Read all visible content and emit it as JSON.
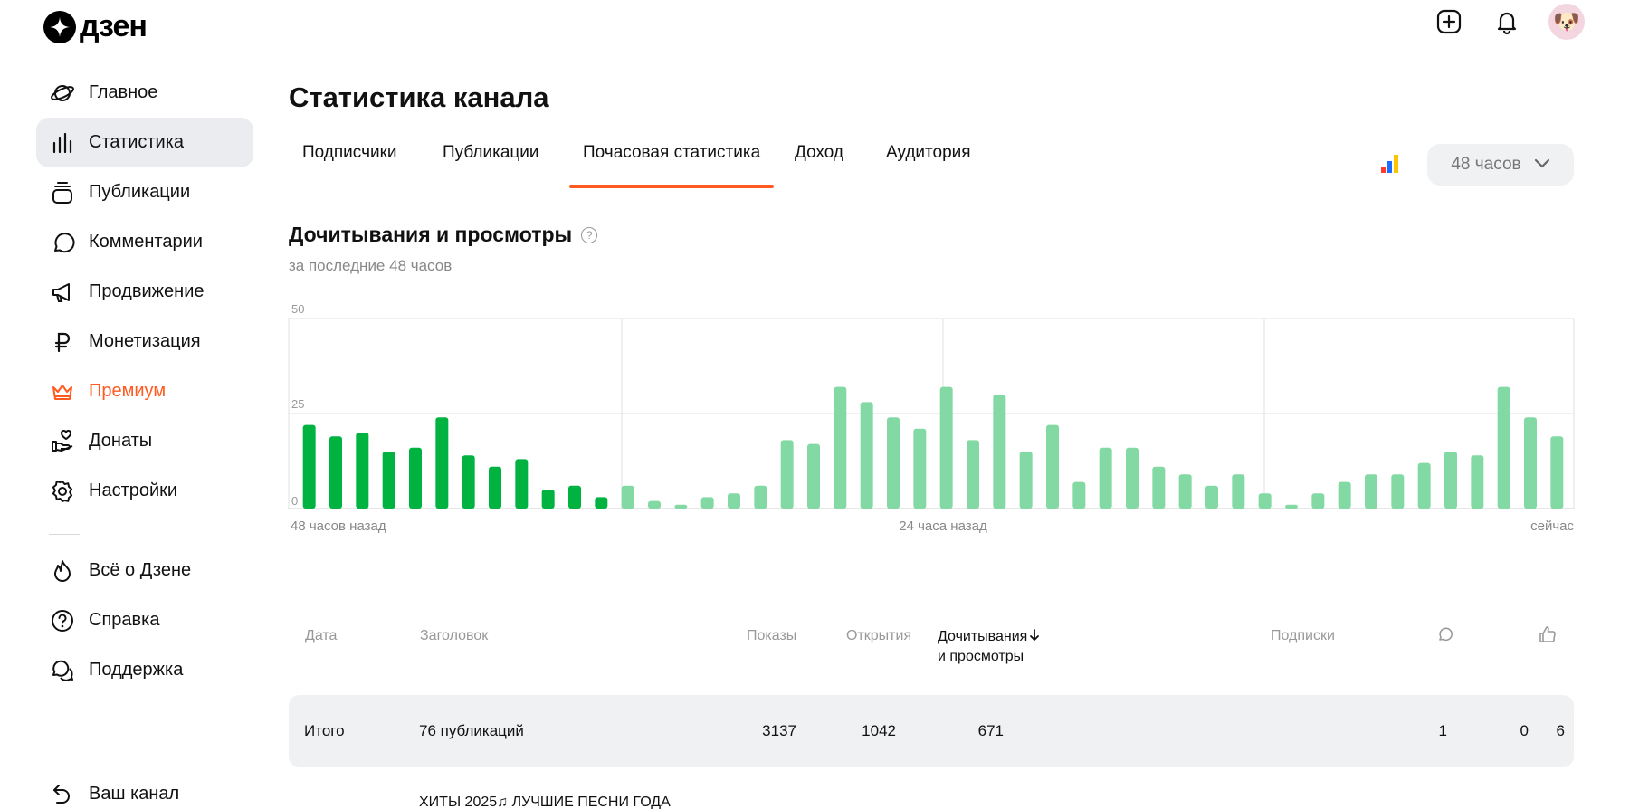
{
  "app": {
    "logo_text": "дзен",
    "logo_icon": "zen-star-icon"
  },
  "top_actions": {
    "add_icon": "plus-square-icon",
    "bell_icon": "bell-icon",
    "avatar": "🐶"
  },
  "sidebar": {
    "items": [
      {
        "label": "Главное",
        "icon": "planet-icon"
      },
      {
        "label": "Статистика",
        "icon": "bar-chart-icon",
        "active": true
      },
      {
        "label": "Публикации",
        "icon": "stack-icon"
      },
      {
        "label": "Комментарии",
        "icon": "comment-icon"
      },
      {
        "label": "Продвижение",
        "icon": "megaphone-icon"
      },
      {
        "label": "Монетизация",
        "icon": "ruble-icon"
      },
      {
        "label": "Премиум",
        "icon": "crown-icon"
      },
      {
        "label": "Донаты",
        "icon": "hand-heart-icon"
      },
      {
        "label": "Настройки",
        "icon": "gear-icon"
      }
    ],
    "secondary": [
      {
        "label": "Всё о Дзене",
        "icon": "flame-icon"
      },
      {
        "label": "Справка",
        "icon": "question-icon"
      },
      {
        "label": "Поддержка",
        "icon": "chat-bubbles-icon"
      }
    ],
    "bottom": {
      "label": "Ваш канал",
      "icon": "back-arrow-icon"
    }
  },
  "main": {
    "title": "Статистика канала",
    "tabs": [
      "Подписчики",
      "Публикации",
      "Почасовая статистика",
      "Доход",
      "Аудитория"
    ],
    "active_tab": 2,
    "period": "48 часов",
    "section_title": "Дочитывания и просмотры",
    "section_subtitle": "за последние 48 часов"
  },
  "chart_data": {
    "type": "bar",
    "title": "Дочитывания и просмотры",
    "ylim": [
      0,
      50
    ],
    "y_ticks": [
      "50",
      "25",
      "0"
    ],
    "x_labels": [
      "48 часов назад",
      "24 часа назад",
      "сейчас"
    ],
    "grid": true,
    "colors": {
      "dark": "#00b341",
      "light": "#83d9a3"
    },
    "values": [
      22,
      19,
      20,
      15,
      16,
      24,
      14,
      11,
      13,
      5,
      6,
      3,
      6,
      2,
      1,
      3,
      4,
      6,
      18,
      17,
      32,
      28,
      24,
      21,
      32,
      18,
      30,
      15,
      22,
      7,
      16,
      16,
      11,
      9,
      6,
      9,
      4,
      1,
      4,
      7,
      9,
      9,
      12,
      15,
      14,
      32,
      24,
      19
    ],
    "dark_count": 12
  },
  "table": {
    "headers": {
      "date": "Дата",
      "title": "Заголовок",
      "impressions": "Показы",
      "opens": "Открытия",
      "reads_line1": "Дочитывания",
      "reads_line2": "и просмотры",
      "subs": "Подписки"
    },
    "comment_icon": "comment-icon",
    "like_icon": "thumbs-up-icon",
    "total": {
      "label": "Итого",
      "title": "76 публикаций",
      "impressions": "3137",
      "opens": "1042",
      "reads": "671",
      "subs": "1",
      "comments": "0",
      "likes": "6"
    },
    "first_row_title": "ХИТЫ 2025♫ ЛУЧШИЕ ПЕСНИ ГОДА"
  }
}
